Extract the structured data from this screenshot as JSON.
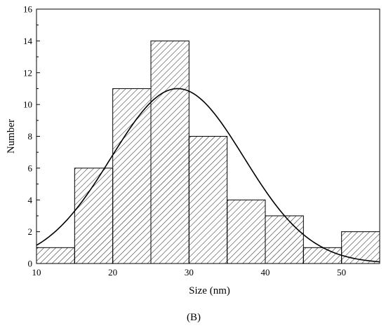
{
  "chart_data": {
    "type": "bar",
    "subtype": "histogram",
    "panel_label": "(B)",
    "xlabel": "Size (nm)",
    "ylabel": "Number",
    "xlim": [
      10,
      55
    ],
    "ylim": [
      0,
      16
    ],
    "x_ticks": [
      10,
      20,
      30,
      40,
      50
    ],
    "y_ticks": [
      0,
      2,
      4,
      6,
      8,
      10,
      12,
      14,
      16
    ],
    "bins": [
      {
        "start": 10,
        "end": 15,
        "count": 1
      },
      {
        "start": 15,
        "end": 20,
        "count": 6
      },
      {
        "start": 20,
        "end": 25,
        "count": 11
      },
      {
        "start": 25,
        "end": 30,
        "count": 14
      },
      {
        "start": 30,
        "end": 35,
        "count": 8
      },
      {
        "start": 35,
        "end": 40,
        "count": 4
      },
      {
        "start": 40,
        "end": 45,
        "count": 3
      },
      {
        "start": 45,
        "end": 50,
        "count": 1
      },
      {
        "start": 50,
        "end": 55,
        "count": 2
      }
    ],
    "bar_fill": "diagonal-hatch",
    "fit_curve": {
      "type": "gaussian",
      "peak_x": 28.5,
      "peak_y": 11.0,
      "sigma": 8.7
    },
    "grid": false,
    "legend": "none",
    "colors": {
      "line": "#000000",
      "background": "#ffffff"
    }
  }
}
